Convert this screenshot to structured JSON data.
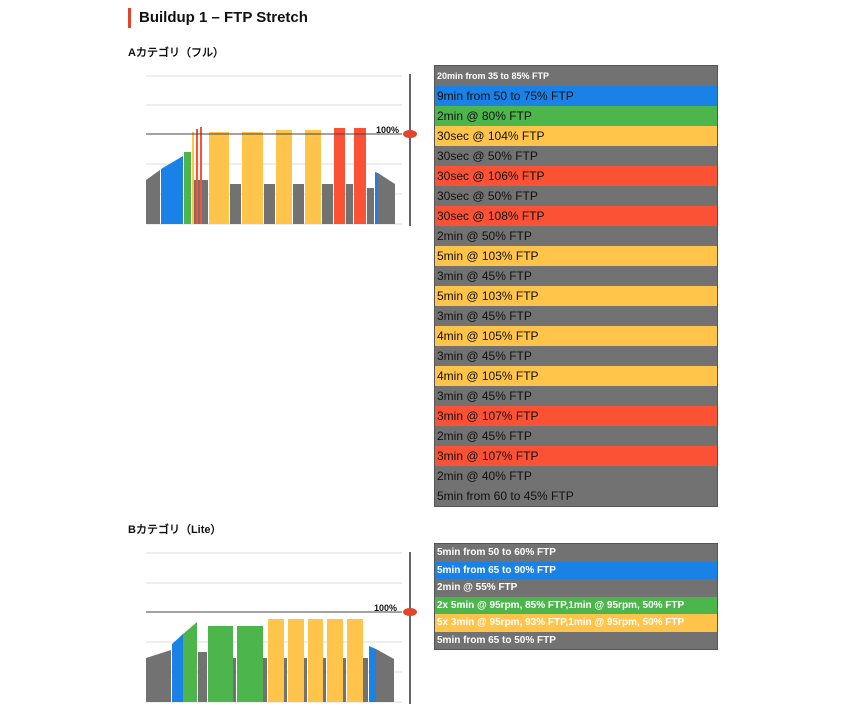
{
  "page_title": "Buildup 1 – FTP Stretch",
  "colors": {
    "gray": "#727272",
    "blue": "#1a82e6",
    "green": "#4cb54c",
    "yellow": "#ffc449",
    "red": "#fb5236",
    "accent": "#e2452c"
  },
  "section_a": {
    "label": "Aカテゴリ（フル）",
    "ftp_marker": "100%",
    "rows": [
      {
        "text": "20min from 35 to 85% FTP",
        "color": "gray",
        "header": true
      },
      {
        "text": "9min from 50 to 75% FTP",
        "color": "blue"
      },
      {
        "text": "2min @ 80% FTP",
        "color": "green"
      },
      {
        "text": "30sec @ 104% FTP",
        "color": "yellow"
      },
      {
        "text": "30sec @ 50% FTP",
        "color": "gray"
      },
      {
        "text": "30sec @ 106% FTP",
        "color": "red"
      },
      {
        "text": "30sec @ 50% FTP",
        "color": "gray"
      },
      {
        "text": "30sec @ 108% FTP",
        "color": "red"
      },
      {
        "text": "2min @ 50% FTP",
        "color": "gray"
      },
      {
        "text": "5min @ 103% FTP",
        "color": "yellow"
      },
      {
        "text": "3min @ 45% FTP",
        "color": "gray"
      },
      {
        "text": "5min @ 103% FTP",
        "color": "yellow"
      },
      {
        "text": "3min @ 45% FTP",
        "color": "gray"
      },
      {
        "text": "4min @ 105% FTP",
        "color": "yellow"
      },
      {
        "text": "3min @ 45% FTP",
        "color": "gray"
      },
      {
        "text": "4min @ 105% FTP",
        "color": "yellow"
      },
      {
        "text": "3min @ 45% FTP",
        "color": "gray"
      },
      {
        "text": "3min @ 107% FTP",
        "color": "red"
      },
      {
        "text": "2min @ 45% FTP",
        "color": "gray"
      },
      {
        "text": "3min @ 107% FTP",
        "color": "red"
      },
      {
        "text": "2min @ 40% FTP",
        "color": "gray"
      },
      {
        "text": "5min from 60 to 45% FTP",
        "color": "gray"
      }
    ]
  },
  "section_b": {
    "label": "Bカテゴリ（Lite）",
    "ftp_marker": "100%",
    "rows": [
      {
        "text": "5min from 50 to 60% FTP",
        "color": "gray"
      },
      {
        "text": "5min from 65 to 90% FTP",
        "color": "blue"
      },
      {
        "text": "2min @ 55% FTP",
        "color": "gray"
      },
      {
        "text": "2x 5min @ 95rpm, 85% FTP,1min @ 95rpm, 50% FTP",
        "color": "green"
      },
      {
        "text": "5x 3min @ 95rpm, 93% FTP,1min @ 95rpm, 50% FTP",
        "color": "yellow"
      },
      {
        "text": "5min from 65 to 50% FTP",
        "color": "gray"
      }
    ]
  }
}
